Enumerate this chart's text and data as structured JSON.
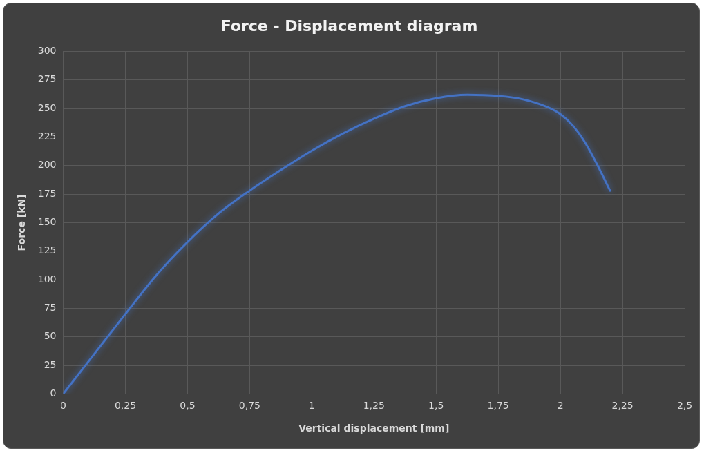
{
  "chart_data": {
    "type": "line",
    "title": "Force - Displacement diagram",
    "xlabel": "Vertical displacement [mm]",
    "ylabel": "Force [kN]",
    "x": [
      0,
      0.1,
      0.25,
      0.375,
      0.5,
      0.625,
      0.75,
      0.875,
      1.0,
      1.125,
      1.25,
      1.375,
      1.5,
      1.625,
      1.75,
      1.85,
      1.95,
      2.0,
      2.05,
      2.1,
      2.15,
      2.2
    ],
    "series": [
      {
        "color": "#4472c4",
        "values": [
          0,
          28,
          70,
          104,
          133,
          158,
          178,
          196,
          213,
          228,
          241,
          252,
          259,
          262,
          261,
          258,
          251,
          245,
          235,
          220,
          200,
          178
        ]
      }
    ],
    "xlim": [
      0,
      2.5
    ],
    "xticks": [
      0,
      {
        "value": 0.25,
        "label": "0,25"
      },
      {
        "value": 0.5,
        "label": "0,5"
      },
      {
        "value": 0.75,
        "label": "0,75"
      },
      1,
      {
        "value": 1.25,
        "label": "1,25"
      },
      {
        "value": 1.5,
        "label": "1,5"
      },
      {
        "value": 1.75,
        "label": "1,75"
      },
      2,
      {
        "value": 2.25,
        "label": "2,25"
      },
      {
        "value": 2.5,
        "label": "2,5"
      }
    ],
    "ylim": [
      0,
      300
    ],
    "yticks": [
      0,
      25,
      50,
      75,
      100,
      125,
      150,
      175,
      200,
      225,
      250,
      275,
      300
    ],
    "grid": true,
    "legend": false,
    "marker": "none",
    "line_style": "solid"
  }
}
